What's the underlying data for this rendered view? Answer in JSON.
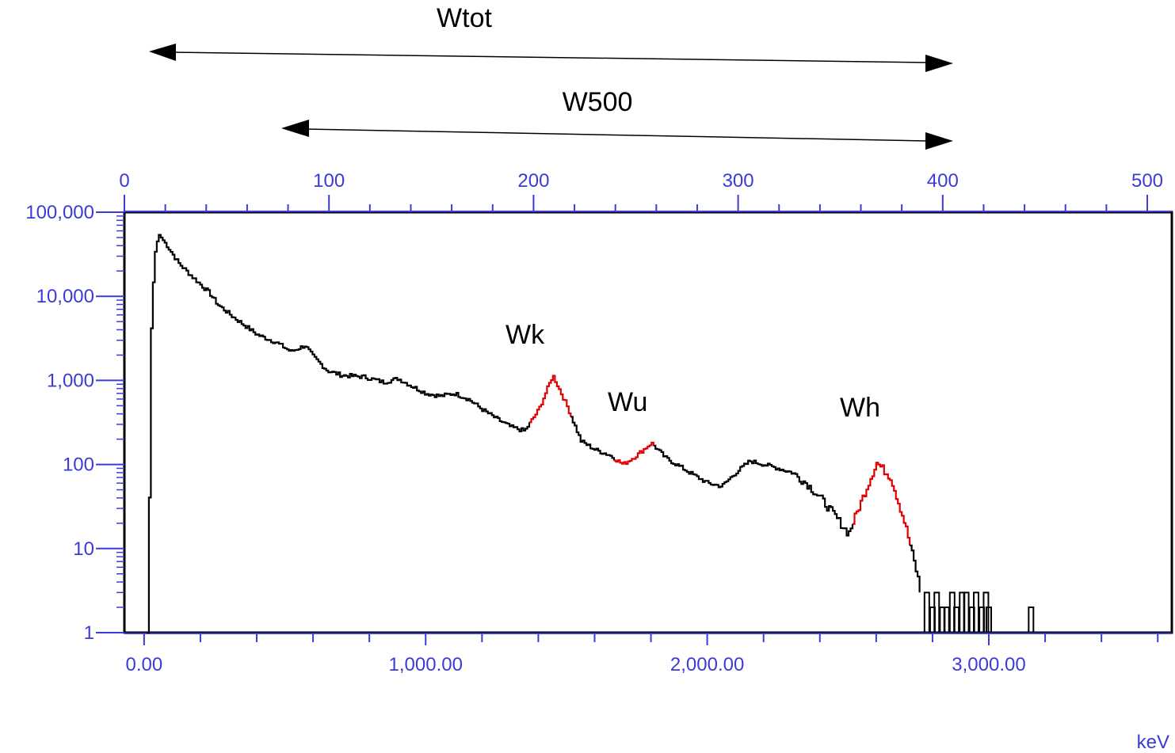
{
  "chart_data": {
    "type": "line",
    "title": "",
    "x_bottom": {
      "unit": "keV",
      "range": [
        -70,
        3650
      ],
      "ticks": [
        0,
        1000,
        2000,
        3000
      ],
      "tick_labels": [
        "0.00",
        "1,000.00",
        "2,000.00",
        "3,000.00"
      ]
    },
    "x_top": {
      "range": [
        0,
        512
      ],
      "ticks": [
        0,
        100,
        200,
        300,
        400,
        500
      ],
      "tick_labels": [
        "0",
        "100",
        "200",
        "300",
        "400",
        "500"
      ]
    },
    "y": {
      "scale": "log",
      "range": [
        1,
        100000
      ],
      "ticks": [
        1,
        10,
        100,
        1000,
        10000,
        100000
      ],
      "tick_labels": [
        "1",
        "10",
        "100",
        "1,000",
        "10,000",
        "100,000"
      ]
    },
    "grid": false,
    "colors": {
      "spectrum": "#000000",
      "windows": "#e00000",
      "axis_text": "#3b3bd6",
      "arrows": "#000000"
    },
    "spectrum": {
      "x": [
        10,
        15,
        20,
        25,
        35,
        50,
        80,
        120,
        170,
        230,
        260,
        320,
        400,
        470,
        520,
        570,
        600,
        650,
        700,
        780,
        850,
        900,
        950,
        1000,
        1050,
        1100,
        1150,
        1200,
        1250,
        1300,
        1350,
        1400,
        1450,
        1500,
        1550,
        1600,
        1650,
        1700,
        1750,
        1800,
        1850,
        1900,
        1950,
        2000,
        2050,
        2100,
        2150,
        2200,
        2250,
        2300,
        2350,
        2400,
        2450,
        2500,
        2550,
        2600,
        2650,
        2700,
        2750,
        2760,
        2800,
        2850,
        2900,
        2950,
        3000,
        3150
      ],
      "y": [
        1,
        3,
        2000,
        5000,
        30000,
        55000,
        40000,
        25000,
        17000,
        11000,
        8000,
        5500,
        3500,
        2800,
        2200,
        2600,
        1900,
        1300,
        1150,
        1100,
        950,
        1050,
        850,
        700,
        650,
        700,
        600,
        450,
        350,
        280,
        250,
        450,
        1150,
        500,
        190,
        150,
        130,
        100,
        130,
        180,
        120,
        95,
        75,
        60,
        55,
        80,
        110,
        100,
        90,
        80,
        60,
        40,
        25,
        15,
        40,
        105,
        70,
        20,
        4,
        2,
        3,
        2,
        2,
        3,
        2,
        2
      ]
    },
    "series": [
      {
        "name": "Wk",
        "x_range": [
          1370,
          1520
        ]
      },
      {
        "name": "Wu",
        "x_range": [
          1670,
          1810
        ]
      },
      {
        "name": "Wh",
        "x_range": [
          2520,
          2720
        ]
      }
    ],
    "annotations": [
      {
        "text": "Wtot",
        "type": "double-arrow",
        "x_from": 10,
        "x_to": 400,
        "axis": "top"
      },
      {
        "text": "W500",
        "type": "double-arrow",
        "x_from": 77,
        "x_to": 400,
        "axis": "top"
      }
    ]
  },
  "labels": {
    "wtot": "Wtot",
    "w500": "W500",
    "wk": "Wk",
    "wu": "Wu",
    "wh": "Wh",
    "unit": "keV"
  }
}
